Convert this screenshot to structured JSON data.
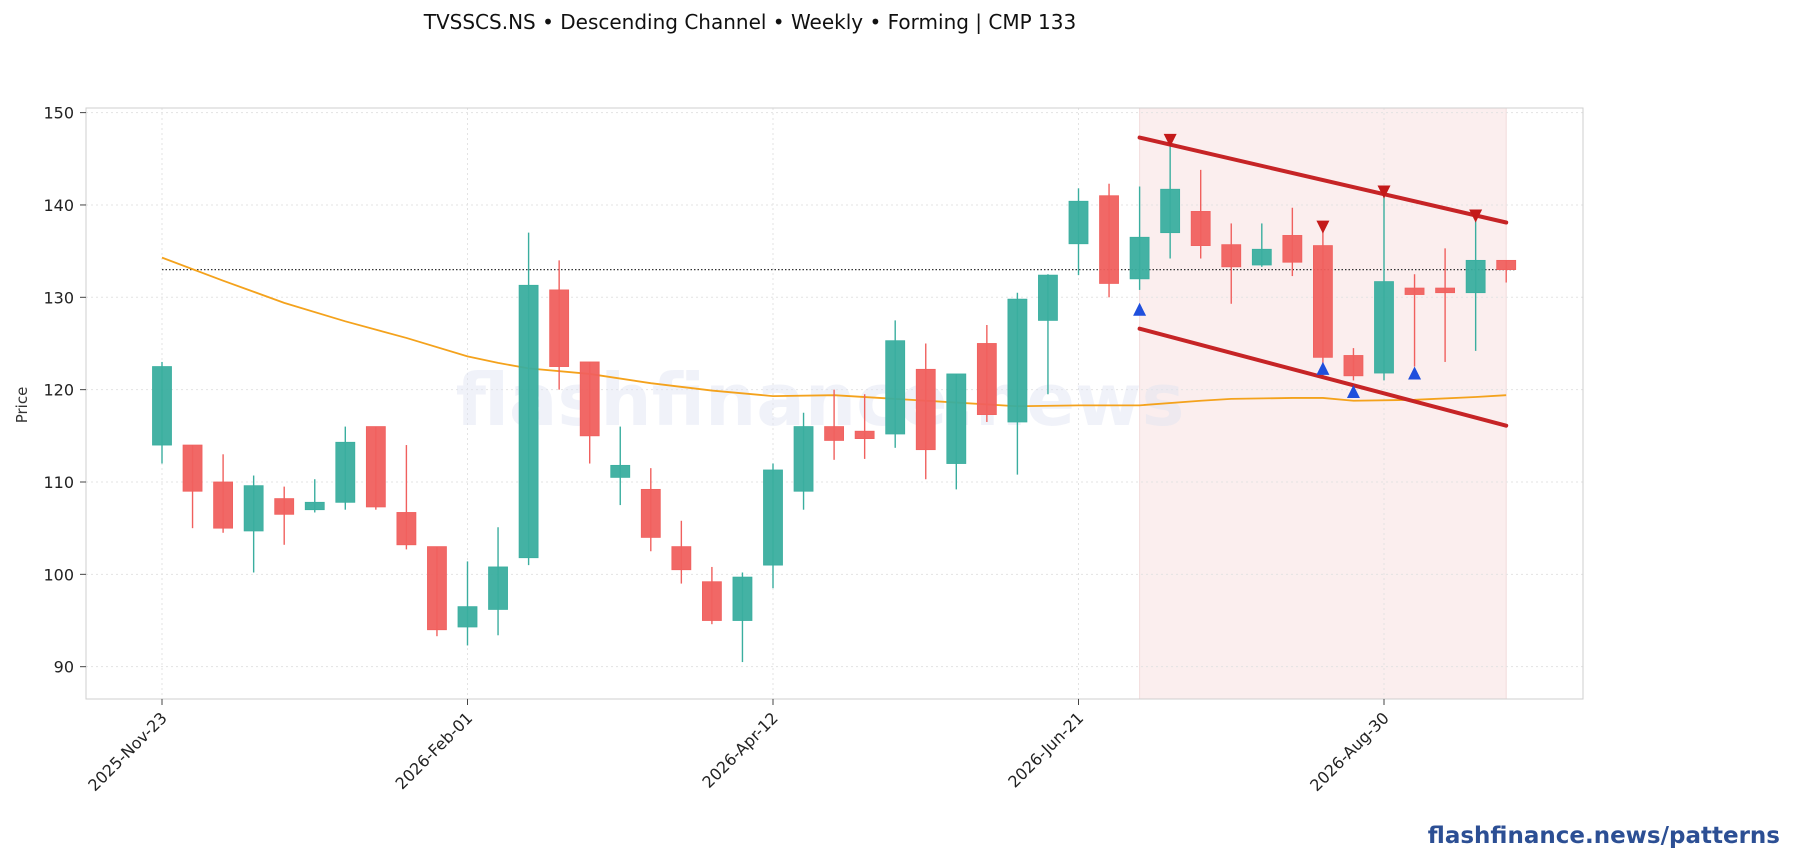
{
  "chart_data": {
    "type": "candlestick",
    "title": "TVSSCS.NS  •  Descending Channel  •  Weekly  •  Forming  |  CMP 133",
    "xlabel": "",
    "ylabel": "Price",
    "ylim": [
      86.5,
      150.5
    ],
    "yticks": [
      90,
      100,
      110,
      120,
      130,
      140,
      150
    ],
    "x_tick_labels": [
      {
        "index": 0,
        "label": "2025-Nov-23"
      },
      {
        "index": 10,
        "label": "2026-Feb-01"
      },
      {
        "index": 20,
        "label": "2026-Apr-12"
      },
      {
        "index": 30,
        "label": "2026-Jun-21"
      },
      {
        "index": 40,
        "label": "2026-Aug-30"
      }
    ],
    "grid": true,
    "candles": [
      {
        "i": 0,
        "open": 114.0,
        "high": 123.0,
        "low": 112.0,
        "close": 122.5
      },
      {
        "i": 1,
        "open": 114.0,
        "high": 114.0,
        "low": 105.0,
        "close": 109.0
      },
      {
        "i": 2,
        "open": 110.0,
        "high": 113.0,
        "low": 104.5,
        "close": 105.0
      },
      {
        "i": 3,
        "open": 104.7,
        "high": 110.7,
        "low": 100.2,
        "close": 109.6
      },
      {
        "i": 4,
        "open": 108.2,
        "high": 109.5,
        "low": 103.2,
        "close": 106.5
      },
      {
        "i": 5,
        "open": 107.0,
        "high": 110.3,
        "low": 106.7,
        "close": 107.8
      },
      {
        "i": 6,
        "open": 107.8,
        "high": 116.0,
        "low": 107.0,
        "close": 114.3
      },
      {
        "i": 7,
        "open": 116.0,
        "high": 116.0,
        "low": 107.0,
        "close": 107.3
      },
      {
        "i": 8,
        "open": 106.7,
        "high": 114.0,
        "low": 102.7,
        "close": 103.2
      },
      {
        "i": 9,
        "open": 103.0,
        "high": 103.0,
        "low": 93.3,
        "close": 94.0
      },
      {
        "i": 10,
        "open": 94.3,
        "high": 101.4,
        "low": 92.3,
        "close": 96.5
      },
      {
        "i": 11,
        "open": 96.2,
        "high": 105.1,
        "low": 93.4,
        "close": 100.8
      },
      {
        "i": 12,
        "open": 101.8,
        "high": 137.0,
        "low": 101.0,
        "close": 131.3
      },
      {
        "i": 13,
        "open": 130.8,
        "high": 134.0,
        "low": 120.0,
        "close": 122.5
      },
      {
        "i": 14,
        "open": 123.0,
        "high": 123.0,
        "low": 112.0,
        "close": 115.0
      },
      {
        "i": 15,
        "open": 110.5,
        "high": 116.0,
        "low": 107.5,
        "close": 111.8
      },
      {
        "i": 16,
        "open": 109.2,
        "high": 111.5,
        "low": 102.5,
        "close": 104.0
      },
      {
        "i": 17,
        "open": 103.0,
        "high": 105.8,
        "low": 99.0,
        "close": 100.5
      },
      {
        "i": 18,
        "open": 99.2,
        "high": 100.8,
        "low": 94.6,
        "close": 95.0
      },
      {
        "i": 19,
        "open": 95.0,
        "high": 100.2,
        "low": 90.5,
        "close": 99.7
      },
      {
        "i": 20,
        "open": 101.0,
        "high": 112.0,
        "low": 98.5,
        "close": 111.3
      },
      {
        "i": 21,
        "open": 109.0,
        "high": 117.5,
        "low": 107.0,
        "close": 116.0
      },
      {
        "i": 22,
        "open": 116.0,
        "high": 120.0,
        "low": 112.4,
        "close": 114.5
      },
      {
        "i": 23,
        "open": 115.5,
        "high": 119.5,
        "low": 112.5,
        "close": 114.7
      },
      {
        "i": 24,
        "open": 115.2,
        "high": 127.5,
        "low": 113.7,
        "close": 125.3
      },
      {
        "i": 25,
        "open": 122.2,
        "high": 125.0,
        "low": 110.3,
        "close": 113.5
      },
      {
        "i": 26,
        "open": 112.0,
        "high": 121.7,
        "low": 109.2,
        "close": 121.7
      },
      {
        "i": 27,
        "open": 125.0,
        "high": 127.0,
        "low": 116.5,
        "close": 117.3
      },
      {
        "i": 28,
        "open": 116.5,
        "high": 130.5,
        "low": 110.8,
        "close": 129.8
      },
      {
        "i": 29,
        "open": 127.5,
        "high": 132.5,
        "low": 119.5,
        "close": 132.4
      },
      {
        "i": 30,
        "open": 135.8,
        "high": 141.8,
        "low": 132.4,
        "close": 140.4
      },
      {
        "i": 31,
        "open": 141.0,
        "high": 142.3,
        "low": 130.0,
        "close": 131.5
      },
      {
        "i": 32,
        "open": 132.0,
        "high": 142.0,
        "low": 130.8,
        "close": 136.5
      },
      {
        "i": 33,
        "open": 137.0,
        "high": 146.7,
        "low": 134.2,
        "close": 141.7
      },
      {
        "i": 34,
        "open": 139.3,
        "high": 143.8,
        "low": 134.2,
        "close": 135.6
      },
      {
        "i": 35,
        "open": 135.7,
        "high": 138.0,
        "low": 129.3,
        "close": 133.3
      },
      {
        "i": 36,
        "open": 133.5,
        "high": 138.0,
        "low": 133.3,
        "close": 135.2
      },
      {
        "i": 37,
        "open": 136.7,
        "high": 139.7,
        "low": 132.3,
        "close": 133.8
      },
      {
        "i": 38,
        "open": 135.6,
        "high": 137.5,
        "low": 121.5,
        "close": 123.5
      },
      {
        "i": 39,
        "open": 123.7,
        "high": 124.5,
        "low": 121.0,
        "close": 121.5
      },
      {
        "i": 40,
        "open": 121.8,
        "high": 141.0,
        "low": 121.0,
        "close": 131.7
      },
      {
        "i": 41,
        "open": 131.0,
        "high": 132.5,
        "low": 122.5,
        "close": 130.3
      },
      {
        "i": 42,
        "open": 131.0,
        "high": 135.3,
        "low": 123.0,
        "close": 130.5
      },
      {
        "i": 43,
        "open": 130.5,
        "high": 139.5,
        "low": 124.2,
        "close": 134.0
      },
      {
        "i": 44,
        "open": 134.0,
        "high": 134.0,
        "low": 131.6,
        "close": 133.0
      }
    ],
    "moving_average": [
      {
        "i": 0,
        "v": 134.3
      },
      {
        "i": 2,
        "v": 131.8
      },
      {
        "i": 4,
        "v": 129.4
      },
      {
        "i": 6,
        "v": 127.4
      },
      {
        "i": 8,
        "v": 125.6
      },
      {
        "i": 10,
        "v": 123.6
      },
      {
        "i": 11,
        "v": 122.9
      },
      {
        "i": 12,
        "v": 122.3
      },
      {
        "i": 14,
        "v": 121.7
      },
      {
        "i": 16,
        "v": 120.7
      },
      {
        "i": 18,
        "v": 119.9
      },
      {
        "i": 20,
        "v": 119.3
      },
      {
        "i": 22,
        "v": 119.4
      },
      {
        "i": 24,
        "v": 119.0
      },
      {
        "i": 26,
        "v": 118.6
      },
      {
        "i": 28,
        "v": 118.2
      },
      {
        "i": 30,
        "v": 118.3
      },
      {
        "i": 32,
        "v": 118.3
      },
      {
        "i": 34,
        "v": 118.8
      },
      {
        "i": 35,
        "v": 119.0
      },
      {
        "i": 37,
        "v": 119.1
      },
      {
        "i": 38,
        "v": 119.1
      },
      {
        "i": 39,
        "v": 118.8
      },
      {
        "i": 41,
        "v": 118.9
      },
      {
        "i": 43,
        "v": 119.2
      },
      {
        "i": 44,
        "v": 119.4
      }
    ],
    "cmp_level": 133,
    "cmp_start_index": 0,
    "pattern_zone": {
      "start_index": 32,
      "end_index": 44
    },
    "channel_upper": {
      "start_index": 32,
      "start_value": 147.3,
      "end_index": 44,
      "end_value": 138.1
    },
    "channel_lower": {
      "start_index": 32,
      "start_value": 126.6,
      "end_index": 44,
      "end_value": 116.1
    },
    "pivot_highs": [
      {
        "i": 33,
        "v": 147.0
      },
      {
        "i": 38,
        "v": 137.6
      },
      {
        "i": 40,
        "v": 141.4
      },
      {
        "i": 43,
        "v": 138.8
      }
    ],
    "pivot_lows": [
      {
        "i": 32,
        "v": 128.7
      },
      {
        "i": 38,
        "v": 122.3
      },
      {
        "i": 39,
        "v": 119.8
      },
      {
        "i": 41,
        "v": 121.8
      }
    ],
    "colors": {
      "up": "#3aae9f",
      "down": "#f0605e",
      "channel": "#c62426",
      "moving_average": "#f4a21c",
      "zone": "#fbeeee",
      "pivot_high": "#c41a1a",
      "pivot_low": "#1f4fdd",
      "grid": "#e3e3e3",
      "cmp_line": "#333333"
    }
  },
  "watermark": "flashfinance.news",
  "credit": "flashfinance.news/patterns"
}
